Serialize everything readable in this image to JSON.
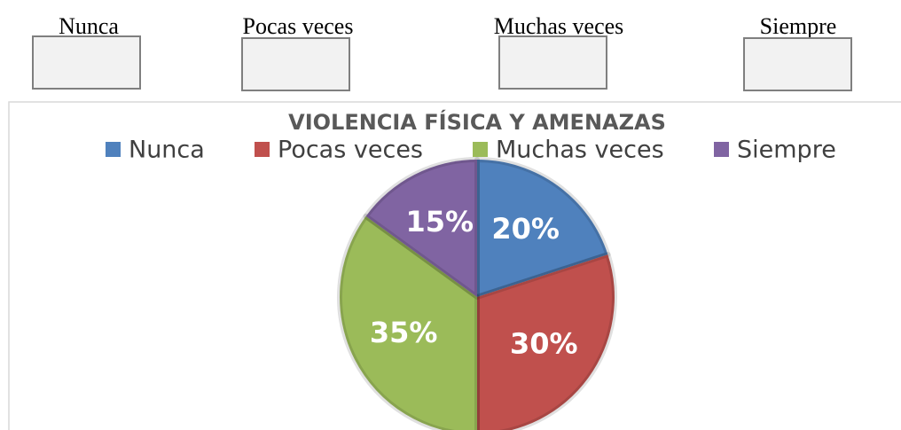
{
  "options": [
    "Nunca",
    "Pocas veces",
    "Muchas veces",
    "Siempre"
  ],
  "chart_data": {
    "type": "pie",
    "title": "VIOLENCIA FÍSICA Y AMENAZAS",
    "categories": [
      "Nunca",
      "Pocas veces",
      "Muchas veces",
      "Siempre"
    ],
    "values": [
      20,
      30,
      35,
      15
    ],
    "value_labels": [
      "20%",
      "30%",
      "35%",
      "15%"
    ],
    "colors": [
      "#4f81bd",
      "#c0504d",
      "#9bbb59",
      "#8064a2"
    ],
    "legend": "top"
  }
}
